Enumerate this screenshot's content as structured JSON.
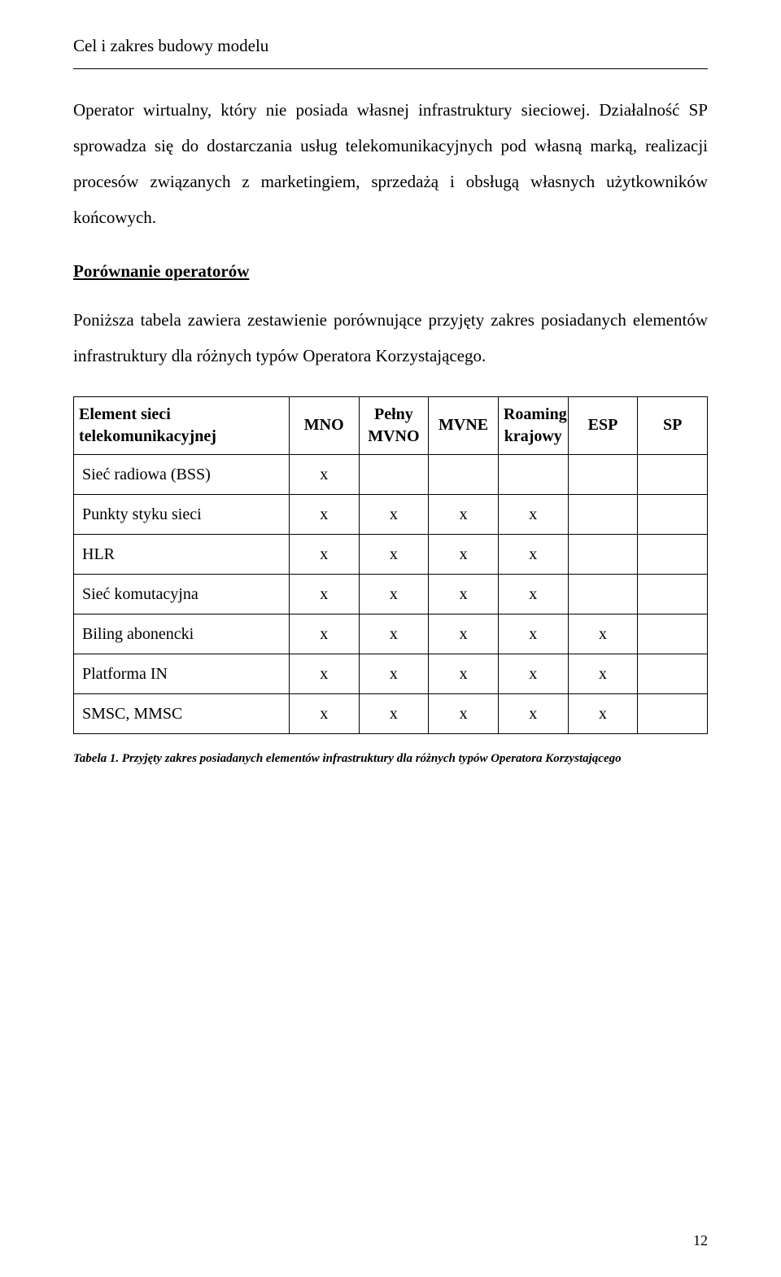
{
  "header": {
    "title": "Cel i zakres budowy modelu"
  },
  "paragraphs": {
    "p1": "Operator wirtualny, który nie posiada własnej infrastruktury sieciowej. Działalność SP sprowadza się do dostarczania usług telekomunikacyjnych pod własną marką, realizacji procesów związanych z marketingiem, sprzedażą i obsługą własnych użytkowników końcowych.",
    "p2_heading": "Porównanie operatorów",
    "p2": "Poniższa tabela zawiera zestawienie porównujące przyjęty zakres posiadanych elementów infrastruktury dla różnych typów Operatora Korzystającego."
  },
  "comparison_table": {
    "type": "table",
    "columns": [
      "Element sieci telekomunikacyjnej",
      "MNO",
      "Pełny MVNO",
      "MVNE",
      "Roaming krajowy",
      "ESP",
      "SP"
    ],
    "rows": [
      {
        "label": "Sieć radiowa (BSS)",
        "cells": [
          "x",
          "",
          "",
          "",
          "",
          ""
        ]
      },
      {
        "label": "Punkty styku sieci",
        "cells": [
          "x",
          "x",
          "x",
          "x",
          "",
          ""
        ]
      },
      {
        "label": "HLR",
        "cells": [
          "x",
          "x",
          "x",
          "x",
          "",
          ""
        ]
      },
      {
        "label": "Sieć komutacyjna",
        "cells": [
          "x",
          "x",
          "x",
          "x",
          "",
          ""
        ]
      },
      {
        "label": "Biling abonencki",
        "cells": [
          "x",
          "x",
          "x",
          "x",
          "x",
          ""
        ]
      },
      {
        "label": "Platforma IN",
        "cells": [
          "x",
          "x",
          "x",
          "x",
          "x",
          ""
        ]
      },
      {
        "label": "SMSC, MMSC",
        "cells": [
          "x",
          "x",
          "x",
          "x",
          "x",
          ""
        ]
      }
    ],
    "caption": "Tabela 1. Przyjęty zakres posiadanych elementów infrastruktury dla różnych typów Operatora Korzystającego",
    "border_color": "#000000",
    "background_color": "#ffffff",
    "header_fontweight": "bold",
    "cell_fontsize": 20,
    "mark": "x"
  },
  "page_number": "12",
  "colors": {
    "text": "#000000",
    "background": "#ffffff",
    "rule": "#000000"
  },
  "typography": {
    "family": "Times New Roman",
    "body_size_pt": 16,
    "caption_size_pt": 11
  }
}
